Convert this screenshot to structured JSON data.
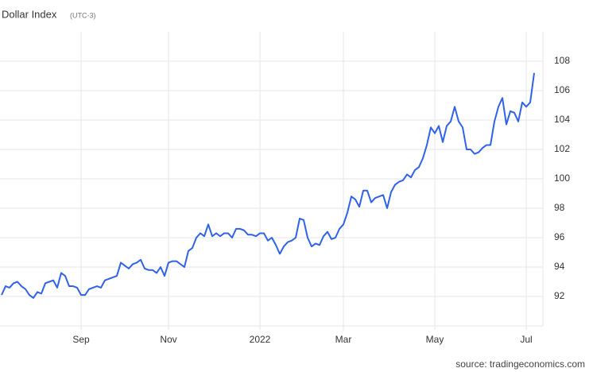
{
  "chart_data": {
    "type": "line",
    "title": "Dollar Index",
    "subtitle": "(UTC-3)",
    "source": "source: tradingeconomics.com",
    "categories": [
      null,
      null,
      null,
      null,
      null,
      null,
      null,
      null,
      null,
      null,
      null,
      null,
      null,
      null,
      null,
      null,
      null,
      null,
      null,
      null,
      "Sep",
      null,
      null,
      null,
      null,
      null,
      null,
      null,
      null,
      null,
      null,
      null,
      null,
      null,
      null,
      null,
      null,
      null,
      null,
      null,
      null,
      null,
      "Nov",
      null,
      null,
      null,
      null,
      null,
      null,
      null,
      null,
      null,
      null,
      null,
      null,
      null,
      null,
      null,
      null,
      null,
      null,
      null,
      null,
      null,
      null,
      "2022",
      null,
      null,
      null,
      null,
      null,
      null,
      null,
      null,
      null,
      null,
      null,
      null,
      null,
      null,
      null,
      null,
      null,
      null,
      null,
      null,
      "Mar",
      null,
      null,
      null,
      null,
      null,
      null,
      null,
      null,
      null,
      null,
      null,
      null,
      null,
      null,
      null,
      null,
      null,
      null,
      null,
      null,
      null,
      null,
      "May",
      null,
      null,
      null,
      null,
      null,
      null,
      null,
      null,
      null,
      null,
      null,
      null,
      null,
      null,
      null,
      null,
      null,
      null,
      null,
      null,
      null,
      null,
      "Jul",
      null,
      null
    ],
    "series": [
      {
        "name": "Dollar Index",
        "color": "#2f62e9",
        "values": [
          92.1,
          92.7,
          92.6,
          92.9,
          93.0,
          92.7,
          92.5,
          92.1,
          91.9,
          92.3,
          92.2,
          92.9,
          93.0,
          93.1,
          92.6,
          93.6,
          93.4,
          92.7,
          92.7,
          92.6,
          92.1,
          92.1,
          92.5,
          92.6,
          92.7,
          92.6,
          93.1,
          93.2,
          93.3,
          93.4,
          94.3,
          94.1,
          93.9,
          94.2,
          94.3,
          94.5,
          93.9,
          93.8,
          93.8,
          93.6,
          94.0,
          93.4,
          94.3,
          94.4,
          94.4,
          94.2,
          94.0,
          95.1,
          95.3,
          96.0,
          96.3,
          96.1,
          96.9,
          96.1,
          96.3,
          96.1,
          96.3,
          96.3,
          96.0,
          96.6,
          96.6,
          96.5,
          96.2,
          96.2,
          96.1,
          96.3,
          96.3,
          95.8,
          96.0,
          95.5,
          94.9,
          95.4,
          95.7,
          95.8,
          96.0,
          97.3,
          97.2,
          96.0,
          95.4,
          95.6,
          95.5,
          96.1,
          96.4,
          95.9,
          96.0,
          96.6,
          96.9,
          97.7,
          98.8,
          98.6,
          98.1,
          99.2,
          99.2,
          98.4,
          98.7,
          98.8,
          98.9,
          98.0,
          99.1,
          99.6,
          99.8,
          99.9,
          100.3,
          100.1,
          100.6,
          100.8,
          101.4,
          102.3,
          103.5,
          103.1,
          103.6,
          102.5,
          103.6,
          103.9,
          104.9,
          103.9,
          103.5,
          102.0,
          102.0,
          101.7,
          101.8,
          102.1,
          102.3,
          102.3,
          103.9,
          104.9,
          105.5,
          103.7,
          104.6,
          104.5,
          103.9,
          105.2,
          104.9,
          105.2,
          107.2
        ]
      }
    ],
    "ylim": [
      90,
      110
    ],
    "yticks": [
      92,
      94,
      96,
      98,
      100,
      102,
      104,
      106,
      108
    ],
    "grid": true
  }
}
